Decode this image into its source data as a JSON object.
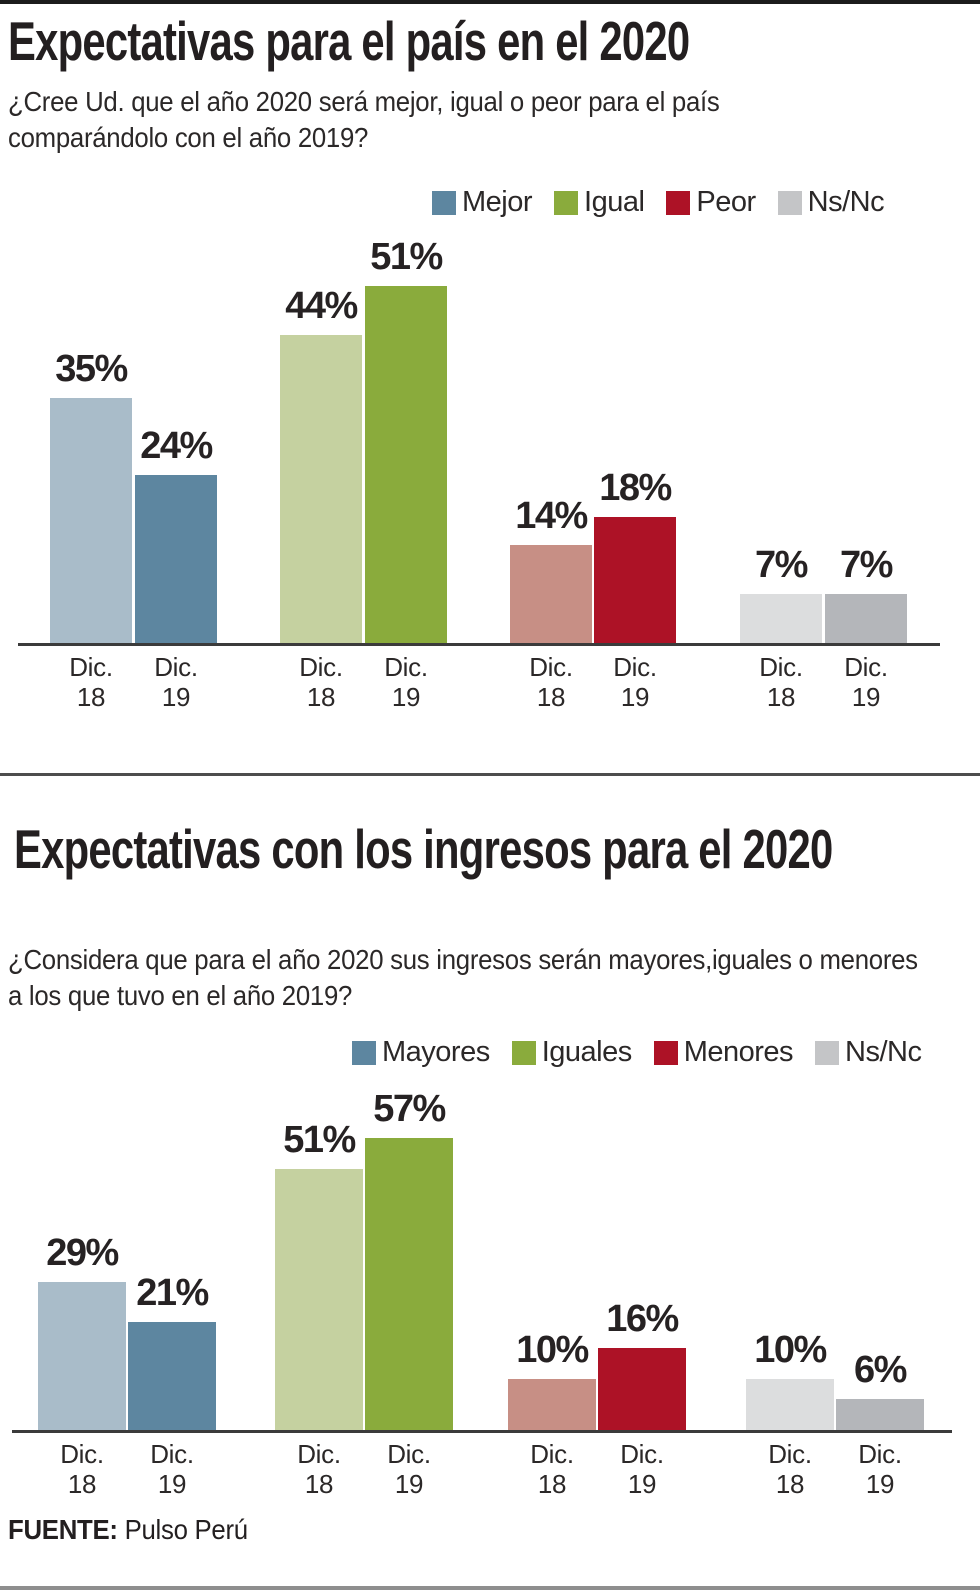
{
  "source": {
    "label": "FUENTE:",
    "value": " Pulso Perú"
  },
  "chart_data": [
    {
      "type": "bar",
      "title": "Expectativas para el país en el 2020",
      "subtitle": "¿Cree Ud. que el año 2020 será mejor, igual o peor para el país comparándolo con el año 2019?",
      "unit": "%",
      "grid": false,
      "legend_position": "top-right",
      "ylim": [
        0,
        55
      ],
      "categories": [
        {
          "line1": "Dic.",
          "line2": "18"
        },
        {
          "line1": "Dic.",
          "line2": "19"
        }
      ],
      "series": [
        {
          "name": "Mejor",
          "values": [
            35,
            24
          ],
          "colors": [
            "#a9bcc9",
            "#5d86a0"
          ]
        },
        {
          "name": "Igual",
          "values": [
            44,
            51
          ],
          "colors": [
            "#c5d1a0",
            "#8aab3c"
          ]
        },
        {
          "name": "Peor",
          "values": [
            14,
            18
          ],
          "colors": [
            "#c78f85",
            "#ad1226"
          ]
        },
        {
          "name": "Ns/Nc",
          "values": [
            7,
            7
          ],
          "colors": [
            "#dcddde",
            "#b4b6ba"
          ]
        }
      ],
      "legend": [
        {
          "label": "Mejor",
          "color": "#5d86a0"
        },
        {
          "label": "Igual",
          "color": "#8aab3c"
        },
        {
          "label": "Peor",
          "color": "#ad1226"
        },
        {
          "label": "Ns/Nc",
          "color": "#c4c5c7"
        }
      ]
    },
    {
      "type": "bar",
      "title": "Expectativas con los ingresos para el 2020",
      "subtitle": "¿Considera que para el año 2020 sus ingresos serán mayores,iguales o menores a los que tuvo en el año 2019?",
      "unit": "%",
      "grid": false,
      "legend_position": "top-right",
      "ylim": [
        0,
        60
      ],
      "categories": [
        {
          "line1": "Dic.",
          "line2": "18"
        },
        {
          "line1": "Dic.",
          "line2": "19"
        }
      ],
      "series": [
        {
          "name": "Mayores",
          "values": [
            29,
            21
          ],
          "colors": [
            "#a9bcc9",
            "#5d86a0"
          ]
        },
        {
          "name": "Iguales",
          "values": [
            51,
            57
          ],
          "colors": [
            "#c5d1a0",
            "#8aab3c"
          ]
        },
        {
          "name": "Menores",
          "values": [
            10,
            16
          ],
          "colors": [
            "#c78f85",
            "#ad1226"
          ]
        },
        {
          "name": "Ns/Nc",
          "values": [
            10,
            6
          ],
          "colors": [
            "#dcddde",
            "#b4b6ba"
          ]
        }
      ],
      "legend": [
        {
          "label": "Mayores",
          "color": "#5d86a0"
        },
        {
          "label": "Iguales",
          "color": "#8aab3c"
        },
        {
          "label": "Menores",
          "color": "#ad1226"
        },
        {
          "label": "Ns/Nc",
          "color": "#c4c5c7"
        }
      ]
    }
  ]
}
